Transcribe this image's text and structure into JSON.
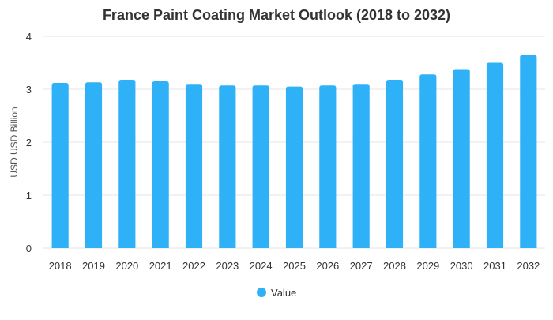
{
  "chart_data": {
    "type": "bar",
    "title": "France Paint Coating Market Outlook (2018 to 2032)",
    "xlabel": "",
    "ylabel": "USD USD Billion",
    "categories": [
      "2018",
      "2019",
      "2020",
      "2021",
      "2022",
      "2023",
      "2024",
      "2025",
      "2026",
      "2027",
      "2028",
      "2029",
      "2030",
      "2031",
      "2032"
    ],
    "series": [
      {
        "name": "Value",
        "values": [
          3.12,
          3.13,
          3.18,
          3.15,
          3.1,
          3.07,
          3.07,
          3.05,
          3.07,
          3.1,
          3.18,
          3.28,
          3.38,
          3.5,
          3.65
        ]
      }
    ],
    "ylim": [
      0,
      4
    ],
    "yticks": [
      "0",
      "1",
      "2",
      "3",
      "4"
    ],
    "grid": true,
    "legend_position": "bottom",
    "colors": {
      "bar": "#2eb1f7",
      "grid": "#e6e6e6",
      "text": "#333333"
    }
  }
}
